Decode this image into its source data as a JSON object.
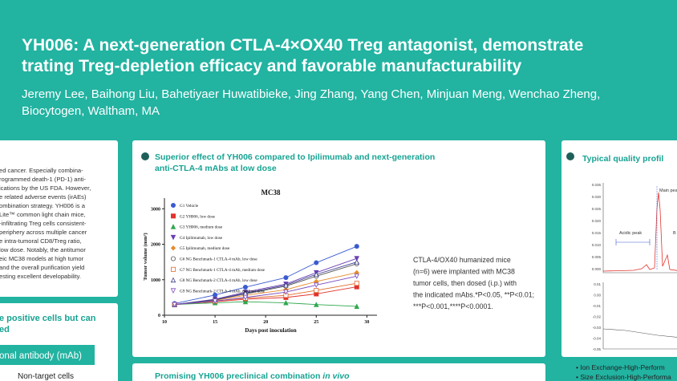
{
  "header": {
    "title_lines": [
      "YH006: A next-generation CTLA-4×OX40 Treg antagonist, demonstrate",
      "trating Treg-depletion efficacy and favorable manufacturability"
    ],
    "author_lines": [
      "Jeremy Lee, Baihong Liu, Bahetiyaer Huwatibieke, Jing Zhang, Yang Chen, Minjuan Meng, Wenchao Zheng,",
      "Biocytogen, Waltham, MA"
    ]
  },
  "left_panel": {
    "lines": [
      "ed cancer. Especially combina-",
      "rogrammed death-1 (PD-1) anti-",
      "ications by the US FDA. However,",
      "e related adverse events (irAEs)",
      "ombination strategy. YH006 is a",
      "Lite™ common light chain mice,",
      "-infiltrating Treg cells consistent-",
      "periphery across multiple cancer",
      "e intra-tumoral CD8/Treg ratio,",
      "low dose. Notably, the antitumor",
      "eic MC38 models at high tumor",
      "and the overall purification yield",
      "esting excellent developability."
    ],
    "subheading_lines": [
      "e positive cells but can",
      "ed"
    ],
    "label_box": "onal antibody (mAb)",
    "bottom_text": "Non-target cells"
  },
  "center_panel": {
    "heading_lines": [
      "Superior effect of YH006 compared to Ipilimumab and next-generation",
      "anti-CTLA-4 mAbs at low dose"
    ],
    "caption_lines": [
      "CTLA-4/OX40 humanized mice",
      "(n=6) were implanted with MC38",
      "tumor cells, then dosed (i.p.) with",
      "the indicated mAbs.*P<0.05, **P<0.01;",
      "***P<0.001,****P<0.0001."
    ],
    "chart": {
      "type": "line",
      "title": "MC38",
      "x_label": "Days post inoculation",
      "y_label": "Tumor volume (mm³)",
      "x": [
        11,
        15,
        18,
        22,
        25,
        29
      ],
      "xlim": [
        10,
        31
      ],
      "xticks": [
        10,
        15,
        20,
        25,
        30
      ],
      "ylim": [
        0,
        3300
      ],
      "yticks": [
        0,
        1000,
        2000,
        3000
      ],
      "series": [
        {
          "name": "G1 Vehicle",
          "color": "#3a5bd0",
          "marker": "circle",
          "values": [
            330,
            570,
            790,
            1060,
            1480,
            1940
          ]
        },
        {
          "name": "G2 YH006, low dose",
          "color": "#e0342c",
          "marker": "square",
          "values": [
            300,
            380,
            450,
            500,
            600,
            800
          ]
        },
        {
          "name": "G3 YH006, medium dose",
          "color": "#2fa84f",
          "marker": "triangle",
          "values": [
            300,
            350,
            380,
            350,
            300,
            250
          ]
        },
        {
          "name": "G4 Ipilimumab, low dose",
          "color": "#6a3fb5",
          "marker": "triangle-down",
          "values": [
            300,
            450,
            650,
            880,
            1200,
            1600
          ]
        },
        {
          "name": "G5 Ipilimumab, medium dose",
          "color": "#e88a2a",
          "marker": "diamond",
          "values": [
            300,
            420,
            560,
            720,
            950,
            1200
          ]
        },
        {
          "name": "G6 NG Benchmark-1 CTLA-4 mAb, low dose",
          "color": "#555555",
          "marker": "circle-open",
          "values": [
            300,
            430,
            600,
            820,
            1100,
            1450
          ]
        },
        {
          "name": "G7 NG Benchmark-1 CTLA-4 mAb, medium dose",
          "color": "#e06a2c",
          "marker": "square-open",
          "values": [
            300,
            400,
            480,
            560,
            700,
            900
          ]
        },
        {
          "name": "G8 NG Benchmark-2 CTLA-4 mAb, low dose",
          "color": "#3d3d8f",
          "marker": "triangle-open",
          "values": [
            300,
            440,
            620,
            850,
            1150,
            1500
          ]
        },
        {
          "name": "G9 NG Benchmark-2 CTLA-4 mAb, medium dose",
          "color": "#7a4cc0",
          "marker": "triangle-down-open",
          "values": [
            300,
            400,
            500,
            650,
            850,
            1100
          ]
        }
      ]
    }
  },
  "bottom_panel": {
    "heading": "Promising YH006 preclinical combination ",
    "heading_italic": "in vivo"
  },
  "right_panel": {
    "heading": "Typical quality profil",
    "top_plot_yticks": [
      "0.035",
      "0.030",
      "0.025",
      "0.020",
      "0.015",
      "0.010",
      "0.005",
      "0.000"
    ],
    "peak_labels": [
      "Main peak",
      "Acidic peak",
      "B"
    ],
    "bottom_plot_yticks": [
      "0.01",
      "0.00",
      "-0.01",
      "-0.02",
      "-0.03",
      "-0.04",
      "-0.05"
    ],
    "bullets": [
      "• Ion Exchange-High-Perform",
      "• Size Exclusion-High-Performa"
    ]
  }
}
